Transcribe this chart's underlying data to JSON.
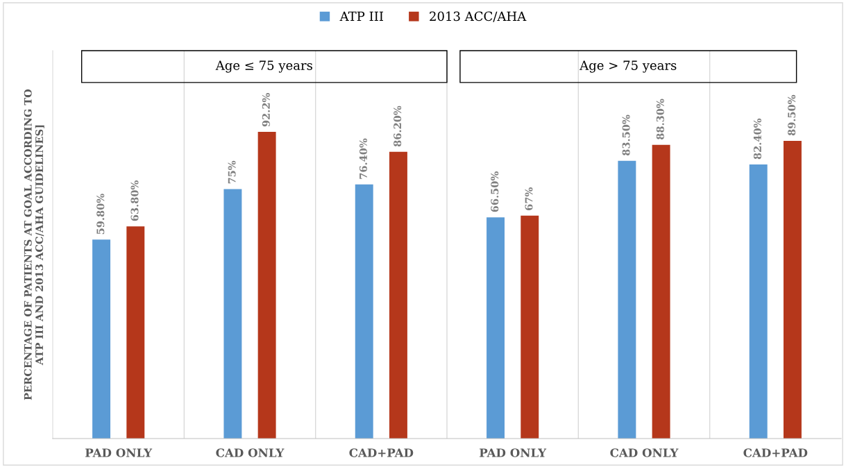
{
  "chart_data": {
    "type": "bar",
    "ylabel": "PERCENTAGE OF PATIENTS AT GOAL ACCORDING TO\nATP III AND 2013 ACC/AHA GUIDELINES]",
    "categories": [
      "PAD ONLY",
      "CAD ONLY",
      "CAD+PAD",
      "PAD ONLY",
      "CAD ONLY",
      "CAD+PAD"
    ],
    "series": [
      {
        "name": "ATP III",
        "color": "#5b9bd5",
        "values": [
          59.8,
          75,
          76.4,
          66.5,
          83.5,
          82.4
        ],
        "value_labels": [
          "59.80%",
          "75%",
          "76.40%",
          "66.50%",
          "83.50%",
          "82.40%"
        ]
      },
      {
        "name": "2013 ACC/AHA",
        "color": "#b5371b",
        "values": [
          63.8,
          92.2,
          86.2,
          67,
          88.3,
          89.5
        ],
        "value_labels": [
          "63.80%",
          "92.2%",
          "86.20%",
          "67%",
          "88.30%",
          "89.50%"
        ]
      }
    ],
    "annotations": [
      "Age ≤ 75 years",
      "Age > 75 years"
    ],
    "ylim": [
      0,
      116.6
    ],
    "tick_labels": "x",
    "grid": "x",
    "legend": "top"
  }
}
